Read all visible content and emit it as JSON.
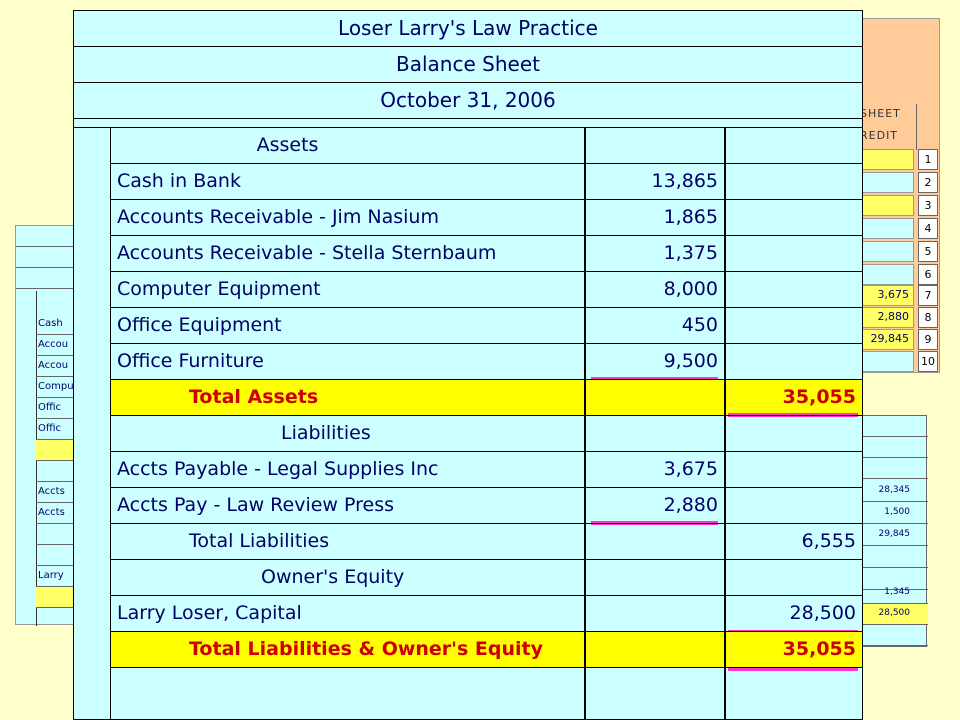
{
  "header": {
    "firm": "Loser Larry's Law Practice",
    "report": "Balance Sheet",
    "date": "October 31, 2006"
  },
  "assets": {
    "heading": "Assets",
    "items": [
      {
        "label": "Cash in Bank",
        "amount": "13,865"
      },
      {
        "label": "Accounts Receivable - Jim Nasium",
        "amount": "1,865"
      },
      {
        "label": "Accounts Receivable - Stella Sternbaum",
        "amount": "1,375"
      },
      {
        "label": "Computer Equipment",
        "amount": "8,000"
      },
      {
        "label": "Office Equipment",
        "amount": "450"
      },
      {
        "label": "Office Furniture",
        "amount": "9,500"
      }
    ],
    "total_label": "Total Assets",
    "total": "35,055"
  },
  "liabilities": {
    "heading": "Liabilities",
    "items": [
      {
        "label": "Accts Payable - Legal Supplies Inc",
        "amount": "3,675"
      },
      {
        "label": "Accts Pay - Law Review Press",
        "amount": "2,880"
      }
    ],
    "total_label": "Total Liabilities",
    "total": "6,555"
  },
  "equity": {
    "heading": "Owner's Equity",
    "capital_label": "Larry Loser, Capital",
    "capital": "28,500",
    "total_label": "Total Liabilities & Owner's Equity",
    "total": "35,055"
  },
  "background_right": {
    "header1": "SHEET",
    "header2": "REDIT",
    "values": [
      "",
      "",
      "",
      "",
      "",
      "",
      "3,675",
      "2,880",
      "29,845",
      ""
    ],
    "row_numbers": [
      "1",
      "2",
      "3",
      "4",
      "5",
      "6",
      "7",
      "8",
      "9",
      "10"
    ]
  },
  "background_right2": {
    "values": [
      "",
      "",
      "",
      "28,345",
      "1,500",
      "29,845",
      "",
      "",
      "1,345",
      "28,500",
      ""
    ]
  },
  "background_left": {
    "rows": [
      "Cash",
      "Accou",
      "Accou",
      "Compu",
      "Offic",
      "Offic",
      "",
      "",
      "Accts",
      "Accts",
      "",
      "",
      "Larry",
      ""
    ]
  },
  "colors": {
    "sheet_bg": "#ccffff",
    "page_bg": "#ffffcc",
    "total_row": "#ffff00",
    "total_text": "#cc0000",
    "underline": "#ff33cc",
    "text": "#000066"
  }
}
